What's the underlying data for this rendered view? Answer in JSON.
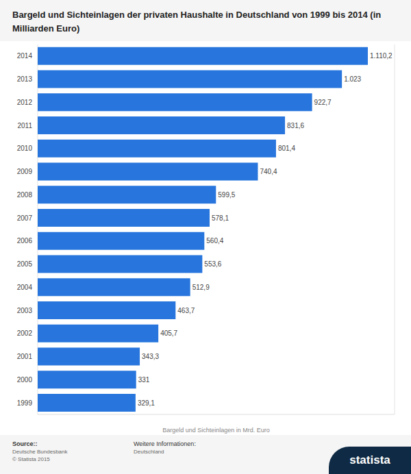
{
  "chart_data": {
    "type": "bar",
    "title": "Bargeld und Sichteinlagen der privaten Haushalte in Deutschland von 1999 bis 2014 (in Milliarden Euro)",
    "x_label": "Bargeld und Sichteinlagen in Mrd. Euro",
    "orientation": "horizontal",
    "categories": [
      "2014",
      "2013",
      "2012",
      "2011",
      "2010",
      "2009",
      "2008",
      "2007",
      "2006",
      "2005",
      "2004",
      "2003",
      "2002",
      "2001",
      "2000",
      "1999"
    ],
    "values": [
      1110.2,
      1023,
      922.7,
      831.6,
      801.4,
      740.4,
      599.5,
      578.1,
      560.4,
      553.6,
      512.9,
      463.7,
      405.7,
      343.3,
      331,
      329.1
    ],
    "value_labels": [
      "1.110,2",
      "1.023",
      "922,7",
      "831,6",
      "801,4",
      "740,4",
      "599,5",
      "578,1",
      "560,4",
      "553,6",
      "512,9",
      "463,7",
      "405,7",
      "343,3",
      "331",
      "329,1"
    ],
    "color": "#2876dd",
    "xlim": [
      0,
      1200
    ],
    "xticks": [
      0,
      100,
      200,
      300,
      400,
      500,
      600,
      700,
      800,
      900,
      1000,
      1100,
      1200
    ],
    "grid": true,
    "data_labels": true,
    "tick_labels": "y"
  },
  "footer": {
    "source_heading": "Source::",
    "source_lines": [
      "Deutsche Bundesbank",
      "© Statista 2015"
    ],
    "info_heading": "Weitere Informationen:",
    "info_lines": [
      "Deutschland"
    ],
    "logo": "statista"
  }
}
